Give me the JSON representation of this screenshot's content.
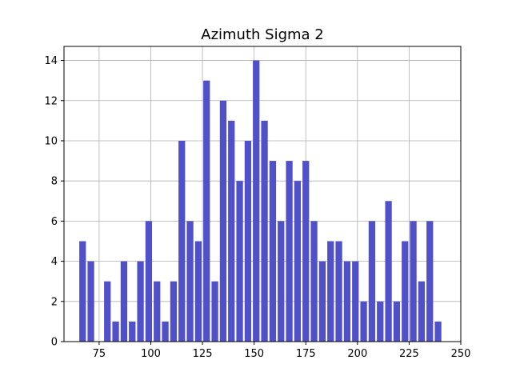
{
  "chart_data": {
    "type": "bar",
    "title": "Azimuth Sigma 2",
    "xlabel": "",
    "ylabel": "",
    "xlim": [
      58,
      250
    ],
    "ylim": [
      0,
      14.7
    ],
    "xticks": [
      75,
      100,
      125,
      150,
      175,
      200,
      225,
      250
    ],
    "yticks": [
      0,
      2,
      4,
      6,
      8,
      10,
      12,
      14
    ],
    "grid": true,
    "bar_width": 3.2,
    "bar_color": "#5050c8",
    "x": [
      67,
      71,
      79,
      83,
      87,
      91,
      95,
      99,
      103,
      107,
      111,
      115,
      119,
      123,
      127,
      131,
      135,
      139,
      143,
      147,
      151,
      155,
      159,
      163,
      167,
      171,
      175,
      179,
      183,
      187,
      191,
      195,
      199,
      203,
      207,
      211,
      215,
      219,
      223,
      227,
      231,
      235,
      239
    ],
    "values": [
      5,
      4,
      3,
      1,
      4,
      1,
      4,
      6,
      3,
      1,
      3,
      10,
      6,
      5,
      13,
      3,
      12,
      11,
      8,
      10,
      14,
      11,
      9,
      6,
      9,
      8,
      9,
      6,
      4,
      5,
      5,
      4,
      4,
      2,
      6,
      2,
      7,
      2,
      5,
      6,
      3,
      6,
      1
    ]
  }
}
